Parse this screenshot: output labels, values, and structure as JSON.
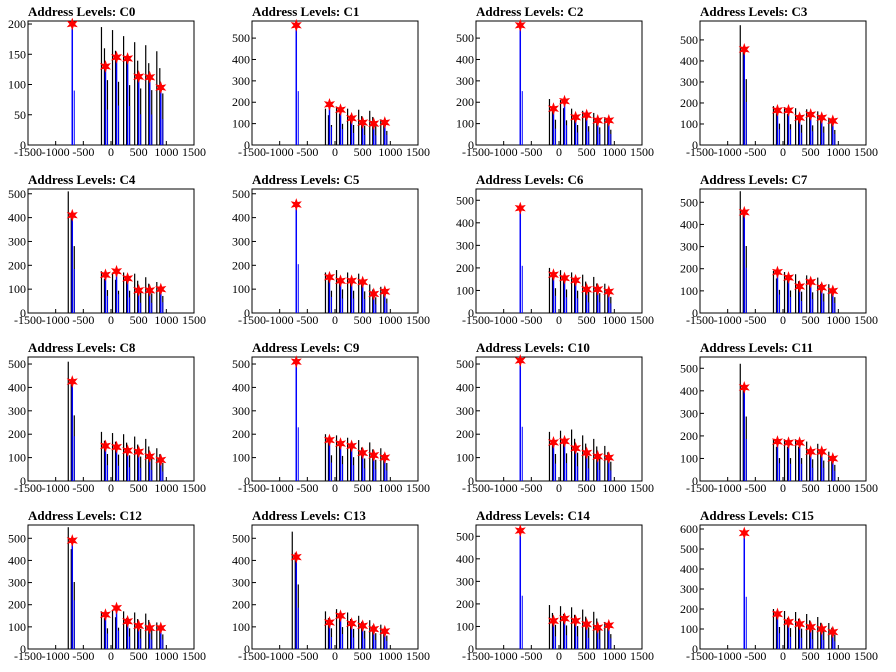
{
  "chart_data": [
    {
      "type": "histogram",
      "title": "Address Levels: C0",
      "xlim": [
        -1500,
        1500
      ],
      "ylim": [
        0,
        205
      ],
      "xticks": [
        "-1500",
        "-1000",
        "-500",
        "0",
        "500",
        "1000",
        "1500"
      ],
      "yticks": [
        "0",
        "50",
        "100",
        "150",
        "200"
      ],
      "peaks_x": [
        -700,
        -100,
        100,
        300,
        500,
        700,
        900
      ],
      "peaks_y": [
        200,
        130,
        145,
        143,
        113,
        112,
        95
      ],
      "blue_heights": [
        200,
        130,
        145,
        143,
        113,
        112,
        95
      ],
      "black_heights": [
        0,
        195,
        190,
        180,
        170,
        165,
        155
      ]
    },
    {
      "type": "histogram",
      "title": "Address Levels: C1",
      "xlim": [
        -1500,
        1500
      ],
      "ylim": [
        0,
        580
      ],
      "xticks": [
        "-1500",
        "-1000",
        "-500",
        "0",
        "500",
        "1000",
        "1500"
      ],
      "yticks": [
        "0",
        "100",
        "200",
        "300",
        "400",
        "500"
      ],
      "peaks_x": [
        -700,
        -100,
        100,
        300,
        500,
        700,
        900
      ],
      "peaks_y": [
        560,
        190,
        165,
        125,
        105,
        100,
        105
      ],
      "blue_heights": [
        560,
        190,
        165,
        125,
        105,
        100,
        105
      ],
      "black_heights": [
        0,
        170,
        180,
        170,
        165,
        160,
        120
      ]
    },
    {
      "type": "histogram",
      "title": "Address Levels: C2",
      "xlim": [
        -1500,
        1500
      ],
      "ylim": [
        0,
        580
      ],
      "xticks": [
        "-1500",
        "-1000",
        "-500",
        "0",
        "500",
        "1000",
        "1500"
      ],
      "yticks": [
        "0",
        "100",
        "200",
        "300",
        "400",
        "500"
      ],
      "peaks_x": [
        -700,
        -100,
        100,
        300,
        500,
        700,
        900
      ],
      "peaks_y": [
        560,
        170,
        205,
        130,
        140,
        115,
        115
      ],
      "blue_heights": [
        560,
        170,
        205,
        130,
        140,
        115,
        115
      ],
      "black_heights": [
        0,
        215,
        210,
        170,
        160,
        150,
        130
      ]
    },
    {
      "type": "histogram",
      "title": "Address Levels: C3",
      "xlim": [
        -1500,
        1500
      ],
      "ylim": [
        0,
        590
      ],
      "xticks": [
        "-1500",
        "-1000",
        "-500",
        "0",
        "500",
        "1000",
        "1500"
      ],
      "yticks": [
        "0",
        "100",
        "200",
        "300",
        "400",
        "500"
      ],
      "peaks_x": [
        -700,
        -100,
        100,
        300,
        500,
        700,
        900
      ],
      "peaks_y": [
        455,
        165,
        165,
        130,
        145,
        130,
        115
      ],
      "blue_heights": [
        455,
        165,
        165,
        130,
        145,
        130,
        115
      ],
      "black_heights": [
        570,
        185,
        180,
        175,
        170,
        160,
        130
      ]
    },
    {
      "type": "histogram",
      "title": "Address Levels: C4",
      "xlim": [
        -1500,
        1500
      ],
      "ylim": [
        0,
        520
      ],
      "xticks": [
        "-1500",
        "-1000",
        "-500",
        "0",
        "500",
        "1000",
        "1500"
      ],
      "yticks": [
        "0",
        "100",
        "200",
        "300",
        "400",
        "500"
      ],
      "peaks_x": [
        -700,
        -100,
        100,
        300,
        500,
        700,
        900
      ],
      "peaks_y": [
        410,
        160,
        175,
        145,
        95,
        95,
        100
      ],
      "blue_heights": [
        410,
        160,
        175,
        145,
        95,
        95,
        100
      ],
      "black_heights": [
        510,
        175,
        170,
        170,
        165,
        150,
        130
      ]
    },
    {
      "type": "histogram",
      "title": "Address Levels: C5",
      "xlim": [
        -1500,
        1500
      ],
      "ylim": [
        0,
        520
      ],
      "xticks": [
        "-1500",
        "-1000",
        "-500",
        "0",
        "500",
        "1000",
        "1500"
      ],
      "yticks": [
        "0",
        "100",
        "200",
        "300",
        "400",
        "500"
      ],
      "peaks_x": [
        -700,
        -100,
        100,
        300,
        500,
        700,
        900
      ],
      "peaks_y": [
        455,
        150,
        135,
        135,
        130,
        80,
        90
      ],
      "blue_heights": [
        455,
        150,
        135,
        135,
        130,
        80,
        90
      ],
      "black_heights": [
        0,
        170,
        180,
        170,
        165,
        120,
        110
      ]
    },
    {
      "type": "histogram",
      "title": "Address Levels: C6",
      "xlim": [
        -1500,
        1500
      ],
      "ylim": [
        0,
        550
      ],
      "xticks": [
        "-1500",
        "-1000",
        "-500",
        "0",
        "500",
        "1000",
        "1500"
      ],
      "yticks": [
        "0",
        "100",
        "200",
        "300",
        "400",
        "500"
      ],
      "peaks_x": [
        -700,
        -100,
        100,
        300,
        500,
        700,
        900
      ],
      "peaks_y": [
        465,
        170,
        155,
        145,
        105,
        105,
        95
      ],
      "blue_heights": [
        465,
        170,
        155,
        145,
        105,
        105,
        95
      ],
      "black_heights": [
        0,
        200,
        190,
        180,
        170,
        160,
        130
      ]
    },
    {
      "type": "histogram",
      "title": "Address Levels: C7",
      "xlim": [
        -1500,
        1500
      ],
      "ylim": [
        0,
        560
      ],
      "xticks": [
        "-1500",
        "-1000",
        "-500",
        "0",
        "500",
        "1000",
        "1500"
      ],
      "yticks": [
        "0",
        "100",
        "200",
        "300",
        "400",
        "500"
      ],
      "peaks_x": [
        -700,
        -100,
        100,
        300,
        500,
        700,
        900
      ],
      "peaks_y": [
        455,
        185,
        160,
        120,
        140,
        115,
        100
      ],
      "blue_heights": [
        455,
        185,
        160,
        120,
        140,
        115,
        100
      ],
      "black_heights": [
        550,
        190,
        185,
        175,
        170,
        160,
        130
      ]
    },
    {
      "type": "histogram",
      "title": "Address Levels: C8",
      "xlim": [
        -1500,
        1500
      ],
      "ylim": [
        0,
        530
      ],
      "xticks": [
        "-1500",
        "-1000",
        "-500",
        "0",
        "500",
        "1000",
        "1500"
      ],
      "yticks": [
        "0",
        "100",
        "200",
        "300",
        "400",
        "500"
      ],
      "peaks_x": [
        -700,
        -100,
        100,
        300,
        500,
        700,
        900
      ],
      "peaks_y": [
        425,
        150,
        145,
        130,
        125,
        105,
        90
      ],
      "blue_heights": [
        425,
        150,
        145,
        130,
        125,
        105,
        90
      ],
      "black_heights": [
        510,
        210,
        205,
        200,
        190,
        180,
        140
      ]
    },
    {
      "type": "histogram",
      "title": "Address Levels: C9",
      "xlim": [
        -1500,
        1500
      ],
      "ylim": [
        0,
        530
      ],
      "xticks": [
        "-1500",
        "-1000",
        "-500",
        "0",
        "500",
        "1000",
        "1500"
      ],
      "yticks": [
        "0",
        "100",
        "200",
        "300",
        "400",
        "500"
      ],
      "peaks_x": [
        -700,
        -100,
        100,
        300,
        500,
        700,
        900
      ],
      "peaks_y": [
        510,
        175,
        160,
        150,
        120,
        110,
        100
      ],
      "blue_heights": [
        510,
        175,
        160,
        150,
        120,
        110,
        100
      ],
      "black_heights": [
        0,
        200,
        195,
        185,
        175,
        165,
        140
      ]
    },
    {
      "type": "histogram",
      "title": "Address Levels: C10",
      "xlim": [
        -1500,
        1500
      ],
      "ylim": [
        0,
        530
      ],
      "xticks": [
        "-1500",
        "-1000",
        "-500",
        "0",
        "500",
        "1000",
        "1500"
      ],
      "yticks": [
        "0",
        "100",
        "200",
        "300",
        "400",
        "500"
      ],
      "peaks_x": [
        -700,
        -100,
        100,
        300,
        500,
        700,
        900
      ],
      "peaks_y": [
        515,
        165,
        170,
        140,
        120,
        105,
        100
      ],
      "blue_heights": [
        515,
        165,
        170,
        140,
        120,
        105,
        100
      ],
      "black_heights": [
        0,
        210,
        215,
        220,
        195,
        180,
        150
      ]
    },
    {
      "type": "histogram",
      "title": "Address Levels: C11",
      "xlim": [
        -1500,
        1500
      ],
      "ylim": [
        0,
        550
      ],
      "xticks": [
        "-1500",
        "-1000",
        "-500",
        "0",
        "500",
        "1000",
        "1500"
      ],
      "yticks": [
        "0",
        "100",
        "200",
        "300",
        "400",
        "500"
      ],
      "peaks_x": [
        -700,
        -100,
        100,
        300,
        500,
        700,
        900
      ],
      "peaks_y": [
        415,
        175,
        170,
        170,
        130,
        130,
        100
      ],
      "blue_heights": [
        415,
        175,
        170,
        170,
        130,
        130,
        100
      ],
      "black_heights": [
        520,
        185,
        185,
        185,
        175,
        165,
        130
      ]
    },
    {
      "type": "histogram",
      "title": "Address Levels: C12",
      "xlim": [
        -1500,
        1500
      ],
      "ylim": [
        0,
        560
      ],
      "xticks": [
        "-1500",
        "-1000",
        "-500",
        "0",
        "500",
        "1000",
        "1500"
      ],
      "yticks": [
        "0",
        "100",
        "200",
        "300",
        "400",
        "500"
      ],
      "peaks_x": [
        -700,
        -100,
        100,
        300,
        500,
        700,
        900
      ],
      "peaks_y": [
        490,
        155,
        185,
        125,
        105,
        95,
        95
      ],
      "blue_heights": [
        490,
        155,
        185,
        125,
        105,
        95,
        95
      ],
      "black_heights": [
        550,
        170,
        175,
        170,
        165,
        160,
        120
      ]
    },
    {
      "type": "histogram",
      "title": "Address Levels: C13",
      "xlim": [
        -1500,
        1500
      ],
      "ylim": [
        0,
        560
      ],
      "xticks": [
        "-1500",
        "-1000",
        "-500",
        "0",
        "500",
        "1000",
        "1500"
      ],
      "yticks": [
        "0",
        "100",
        "200",
        "300",
        "400",
        "500"
      ],
      "peaks_x": [
        -700,
        -100,
        100,
        300,
        500,
        700,
        900
      ],
      "peaks_y": [
        415,
        120,
        150,
        115,
        105,
        90,
        80
      ],
      "blue_heights": [
        415,
        120,
        150,
        115,
        105,
        90,
        80
      ],
      "black_heights": [
        530,
        170,
        180,
        165,
        150,
        130,
        110
      ]
    },
    {
      "type": "histogram",
      "title": "Address Levels: C14",
      "xlim": [
        -1500,
        1500
      ],
      "ylim": [
        0,
        550
      ],
      "xticks": [
        "-1500",
        "-1000",
        "-500",
        "0",
        "500",
        "1000",
        "1500"
      ],
      "yticks": [
        "0",
        "100",
        "200",
        "300",
        "400",
        "500"
      ],
      "peaks_x": [
        -700,
        -100,
        100,
        300,
        500,
        700,
        900
      ],
      "peaks_y": [
        525,
        125,
        135,
        125,
        110,
        95,
        105
      ],
      "blue_heights": [
        525,
        125,
        135,
        125,
        110,
        95,
        105
      ],
      "black_heights": [
        0,
        195,
        190,
        185,
        175,
        165,
        120
      ]
    },
    {
      "type": "histogram",
      "title": "Address Levels: C15",
      "xlim": [
        -1500,
        1500
      ],
      "ylim": [
        0,
        620
      ],
      "xticks": [
        "-1500",
        "-1000",
        "-500",
        "0",
        "500",
        "1000",
        "1500"
      ],
      "yticks": [
        "0",
        "100",
        "200",
        "300",
        "400",
        "500",
        "600"
      ],
      "peaks_x": [
        -700,
        -100,
        100,
        300,
        500,
        700,
        900
      ],
      "peaks_y": [
        580,
        175,
        135,
        125,
        110,
        100,
        85
      ],
      "blue_heights": [
        580,
        175,
        135,
        125,
        110,
        100,
        85
      ],
      "black_heights": [
        0,
        200,
        190,
        185,
        175,
        160,
        130
      ]
    }
  ]
}
